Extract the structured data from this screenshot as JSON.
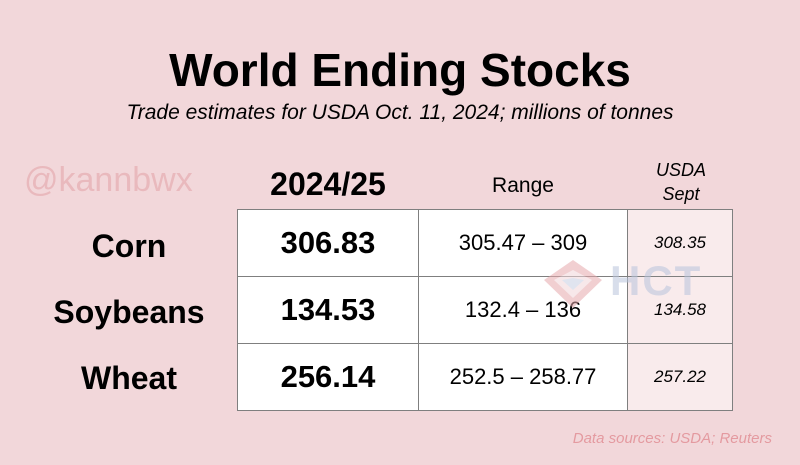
{
  "title": "World Ending Stocks",
  "subtitle": "Trade estimates for USDA Oct. 11, 2024; millions of tonnes",
  "watermark": "@kannbwx",
  "columns": {
    "main": "2024/25",
    "range": "Range",
    "usda_line1": "USDA",
    "usda_line2": "Sept"
  },
  "rows": [
    {
      "label": "Corn",
      "estimate": "306.83",
      "range": "305.47 – 309",
      "usda_sept": "308.35"
    },
    {
      "label": "Soybeans",
      "estimate": "134.53",
      "range": "132.4 – 136",
      "usda_sept": "134.58"
    },
    {
      "label": "Wheat",
      "estimate": "256.14",
      "range": "252.5 – 258.77",
      "usda_sept": "257.22"
    }
  ],
  "logo": {
    "text": "HCT",
    "icon": "diamond-logo-icon"
  },
  "source": "Data sources: USDA; Reuters"
}
